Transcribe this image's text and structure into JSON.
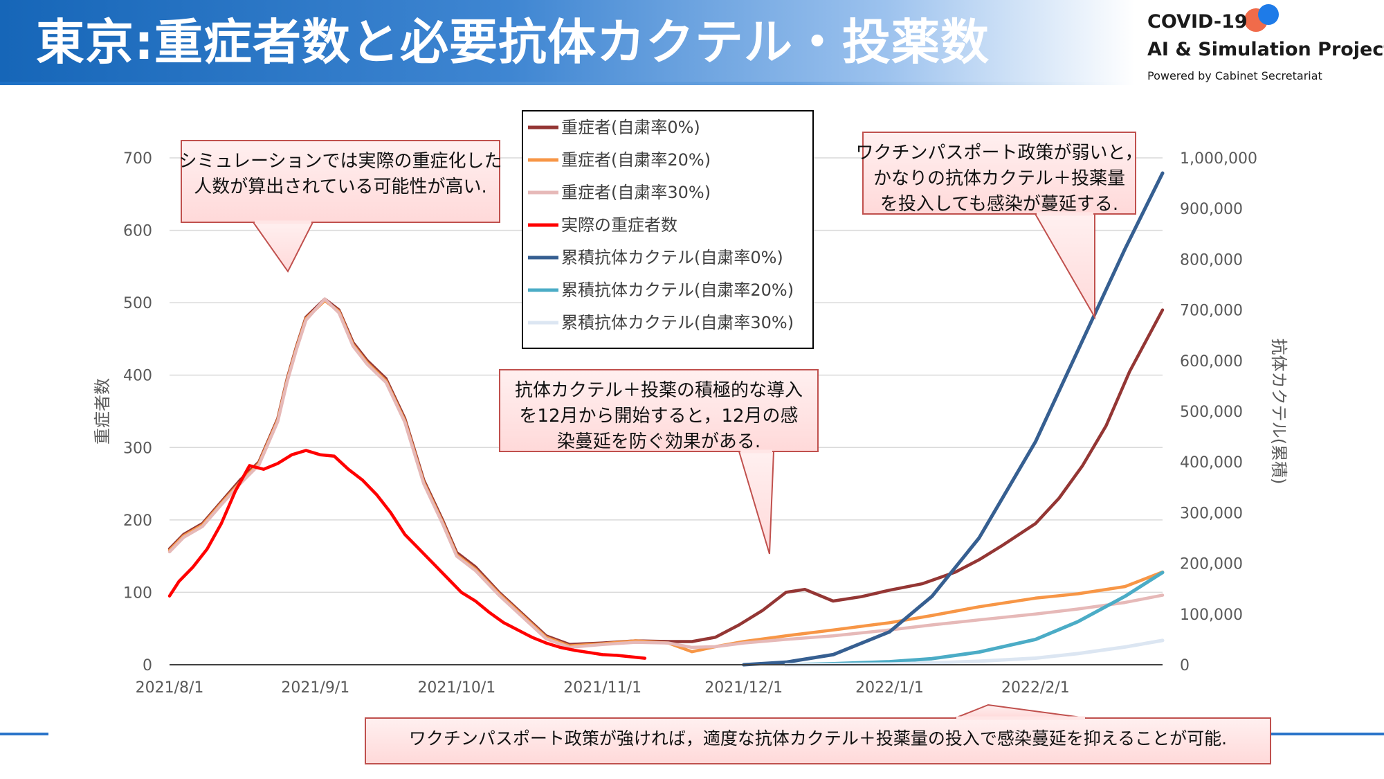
{
  "header": {
    "title": "東京:重症者数と必要抗体カクテル・投薬数"
  },
  "logo": {
    "line1": "COVID-19",
    "line2": "AI & Simulation Project",
    "line3": "Powered by Cabinet Secretariat"
  },
  "colors": {
    "header_blue": "#1666b8",
    "callout_fill": "#ffd9d9",
    "callout_border": "#c0504d"
  },
  "callouts": {
    "left": [
      "シミュレーションでは実際の重症化した",
      "人数が算出されている可能性が高い."
    ],
    "middle": [
      "抗体カクテル＋投薬の積極的な導入",
      "を12月から開始すると，12月の感",
      "染蔓延を防ぐ効果がある."
    ],
    "right": [
      "ワクチンパスポート政策が弱いと，",
      "かなりの抗体カクテル＋投薬量",
      "を投入しても感染が蔓延する."
    ],
    "bottom": [
      "ワクチンパスポート政策が強ければ，適度な抗体カクテル＋投薬量の投入で感染蔓延を抑えることが可能."
    ]
  },
  "chart_data": {
    "type": "line",
    "ylabel": "重症者数",
    "y2label": "抗体カクテル(累積)",
    "ylim": [
      0,
      700
    ],
    "y2lim": [
      0,
      1000000
    ],
    "yticks": [
      "0",
      "100",
      "200",
      "300",
      "400",
      "500",
      "600",
      "700"
    ],
    "y2ticks": [
      "0",
      "100,000",
      "200,000",
      "300,000",
      "400,000",
      "500,000",
      "600,000",
      "700,000",
      "800,000",
      "900,000",
      "1,000,000"
    ],
    "xlim": [
      "2021/8/1",
      "2022/2/28"
    ],
    "xticks": [
      "2021/8/1",
      "2021/9/1",
      "2021/10/1",
      "2021/11/1",
      "2021/12/1",
      "2022/1/1",
      "2022/2/1"
    ],
    "legend_position": "top-center",
    "series": [
      {
        "name": "重症者(自粛率0%)",
        "axis": "left",
        "color": "#943634",
        "x": [
          "2021/8/1",
          "2021/8/4",
          "2021/8/8",
          "2021/8/12",
          "2021/8/16",
          "2021/8/20",
          "2021/8/24",
          "2021/8/26",
          "2021/8/28",
          "2021/8/30",
          "2021/9/3",
          "2021/9/6",
          "2021/9/9",
          "2021/9/12",
          "2021/9/16",
          "2021/9/20",
          "2021/9/24",
          "2021/9/28",
          "2021/10/1",
          "2021/10/5",
          "2021/10/10",
          "2021/10/15",
          "2021/10/20",
          "2021/10/25",
          "2021/11/1",
          "2021/11/8",
          "2021/11/15",
          "2021/11/20",
          "2021/11/25",
          "2021/11/30",
          "2021/12/5",
          "2021/12/10",
          "2021/12/14",
          "2021/12/20",
          "2021/12/26",
          "2022/1/1",
          "2022/1/8",
          "2022/1/15",
          "2022/1/20",
          "2022/1/25",
          "2022/2/1",
          "2022/2/6",
          "2022/2/11",
          "2022/2/16",
          "2022/2/21",
          "2022/2/28"
        ],
        "values": [
          160,
          180,
          195,
          225,
          255,
          280,
          340,
          395,
          440,
          480,
          505,
          490,
          445,
          420,
          395,
          340,
          255,
          200,
          155,
          135,
          100,
          70,
          40,
          28,
          30,
          33,
          32,
          32,
          38,
          55,
          75,
          100,
          104,
          88,
          94,
          103,
          112,
          128,
          145,
          165,
          195,
          230,
          275,
          330,
          405,
          490
        ]
      },
      {
        "name": "重症者(自粛率20%)",
        "axis": "left",
        "color": "#f79646",
        "x": [
          "2021/8/1",
          "2021/8/4",
          "2021/8/8",
          "2021/8/12",
          "2021/8/16",
          "2021/8/20",
          "2021/8/24",
          "2021/8/26",
          "2021/8/28",
          "2021/8/30",
          "2021/9/3",
          "2021/9/6",
          "2021/9/9",
          "2021/9/12",
          "2021/9/16",
          "2021/9/20",
          "2021/9/24",
          "2021/9/28",
          "2021/10/1",
          "2021/10/5",
          "2021/10/10",
          "2021/10/15",
          "2021/10/20",
          "2021/10/25",
          "2021/11/1",
          "2021/11/8",
          "2021/11/15",
          "2021/11/20",
          "2021/11/25",
          "2021/12/1",
          "2021/12/10",
          "2021/12/20",
          "2022/1/1",
          "2022/1/10",
          "2022/1/20",
          "2022/2/1",
          "2022/2/10",
          "2022/2/20",
          "2022/2/28"
        ],
        "values": [
          158,
          178,
          193,
          223,
          252,
          278,
          338,
          393,
          438,
          478,
          503,
          488,
          442,
          417,
          392,
          337,
          252,
          197,
          152,
          132,
          98,
          68,
          38,
          26,
          29,
          33,
          30,
          18,
          25,
          32,
          40,
          48,
          58,
          68,
          80,
          92,
          98,
          108,
          128
        ]
      },
      {
        "name": "重症者(自粛率30%)",
        "axis": "left",
        "color": "#e6b9b8",
        "x": [
          "2021/8/1",
          "2021/8/4",
          "2021/8/8",
          "2021/8/12",
          "2021/8/16",
          "2021/8/20",
          "2021/8/24",
          "2021/8/26",
          "2021/8/28",
          "2021/8/30",
          "2021/9/3",
          "2021/9/6",
          "2021/9/9",
          "2021/9/12",
          "2021/9/16",
          "2021/9/20",
          "2021/9/24",
          "2021/9/28",
          "2021/10/1",
          "2021/10/5",
          "2021/10/10",
          "2021/10/15",
          "2021/10/20",
          "2021/10/25",
          "2021/11/1",
          "2021/11/8",
          "2021/11/15",
          "2021/11/20",
          "2021/11/25",
          "2021/12/1",
          "2021/12/10",
          "2021/12/20",
          "2022/1/1",
          "2022/1/10",
          "2022/1/20",
          "2022/2/1",
          "2022/2/10",
          "2022/2/20",
          "2022/2/28"
        ],
        "values": [
          156,
          176,
          191,
          221,
          250,
          276,
          336,
          391,
          436,
          476,
          505,
          486,
          440,
          415,
          390,
          335,
          250,
          195,
          150,
          130,
          96,
          66,
          36,
          24,
          28,
          31,
          30,
          24,
          25,
          30,
          35,
          40,
          48,
          55,
          62,
          70,
          77,
          86,
          96
        ]
      },
      {
        "name": "実際の重症者数",
        "axis": "left",
        "color": "#ff0000",
        "x": [
          "2021/8/1",
          "2021/8/3",
          "2021/8/6",
          "2021/8/9",
          "2021/8/12",
          "2021/8/15",
          "2021/8/18",
          "2021/8/21",
          "2021/8/24",
          "2021/8/27",
          "2021/8/30",
          "2021/9/2",
          "2021/9/5",
          "2021/9/8",
          "2021/9/11",
          "2021/9/14",
          "2021/9/17",
          "2021/9/20",
          "2021/9/23",
          "2021/9/26",
          "2021/9/29",
          "2021/10/2",
          "2021/10/5",
          "2021/10/8",
          "2021/10/11",
          "2021/10/14",
          "2021/10/17",
          "2021/10/20",
          "2021/10/23",
          "2021/10/26",
          "2021/10/29",
          "2021/11/1",
          "2021/11/4",
          "2021/11/7",
          "2021/11/10"
        ],
        "values": [
          95,
          115,
          135,
          160,
          195,
          240,
          275,
          270,
          278,
          290,
          296,
          290,
          288,
          270,
          255,
          235,
          210,
          180,
          160,
          140,
          120,
          100,
          88,
          72,
          58,
          48,
          38,
          30,
          24,
          20,
          17,
          14,
          13,
          11,
          9
        ]
      },
      {
        "name": "累積抗体カクテル(自粛率0%)",
        "axis": "right",
        "color": "#365f91",
        "x": [
          "2021/12/1",
          "2021/12/10",
          "2021/12/20",
          "2022/1/1",
          "2022/1/10",
          "2022/1/20",
          "2022/2/1",
          "2022/2/10",
          "2022/2/20",
          "2022/2/28"
        ],
        "values": [
          0,
          5000,
          20000,
          65000,
          135000,
          250000,
          440000,
          620000,
          820000,
          970000
        ]
      },
      {
        "name": "累積抗体カクテル(自粛率20%)",
        "axis": "right",
        "color": "#4bacc6",
        "x": [
          "2021/12/10",
          "2021/12/20",
          "2022/1/1",
          "2022/1/10",
          "2022/1/20",
          "2022/2/1",
          "2022/2/10",
          "2022/2/20",
          "2022/2/28"
        ],
        "values": [
          0,
          2000,
          6000,
          12000,
          25000,
          50000,
          85000,
          135000,
          182000
        ]
      },
      {
        "name": "累積抗体カクテル(自粛率30%)",
        "axis": "right",
        "color": "#dce6f2",
        "x": [
          "2021/12/10",
          "2021/12/20",
          "2022/1/1",
          "2022/1/10",
          "2022/1/20",
          "2022/2/1",
          "2022/2/10",
          "2022/2/20",
          "2022/2/28"
        ],
        "values": [
          0,
          500,
          1500,
          3500,
          7000,
          13000,
          22000,
          35000,
          48000
        ]
      }
    ]
  }
}
